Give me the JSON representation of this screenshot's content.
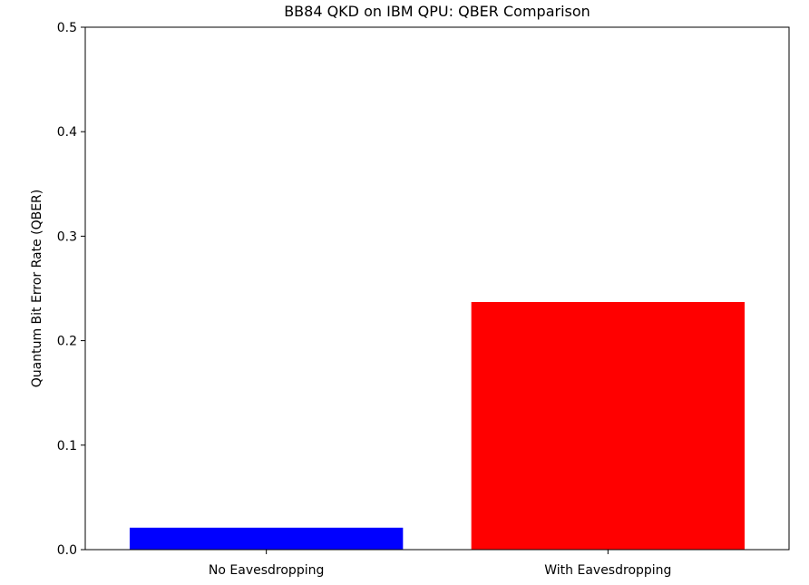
{
  "chart_data": {
    "type": "bar",
    "title": "BB84 QKD on IBM QPU: QBER Comparison",
    "xlabel": "",
    "ylabel": "Quantum Bit Error Rate (QBER)",
    "categories": [
      "No Eavesdropping",
      "With Eavesdropping"
    ],
    "values": [
      0.021,
      0.237
    ],
    "colors": [
      "#0000ff",
      "#ff0000"
    ],
    "ylim": [
      0,
      0.5
    ],
    "yticks": [
      0.0,
      0.1,
      0.2,
      0.3,
      0.4,
      0.5
    ],
    "ytick_labels": [
      "0.0",
      "0.1",
      "0.2",
      "0.3",
      "0.4",
      "0.5"
    ],
    "grid": false,
    "legend": false
  }
}
